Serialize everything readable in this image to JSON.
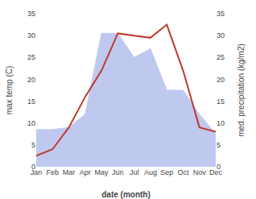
{
  "chart_data": {
    "type": "line",
    "categories": [
      "Jan",
      "Feb",
      "Mar",
      "Apr",
      "May",
      "Jun",
      "Jul",
      "Aug",
      "Sep",
      "Oct",
      "Nov",
      "Dec"
    ],
    "series": [
      {
        "type": "area",
        "color": "#bfc9f0",
        "values": [
          8.5,
          8.5,
          9.0,
          12.0,
          30.5,
          30.5,
          25.0,
          27.0,
          17.5,
          17.5,
          12.0,
          7.5
        ]
      },
      {
        "type": "line",
        "color": "#c0392b",
        "values": [
          2.5,
          4.0,
          9.0,
          16.0,
          22.0,
          30.5,
          30.0,
          29.5,
          32.5,
          22.0,
          9.0,
          8.0
        ]
      }
    ],
    "xlabel": "date (month)",
    "ylabel": "max temp (C)",
    "y2label": "med. precipitation (kg/m2)",
    "ylim": [
      0,
      35
    ],
    "yticks": [
      0,
      5,
      10,
      15,
      20,
      25,
      30,
      35
    ],
    "y2lim": [
      0,
      35
    ],
    "y2ticks": [
      0,
      5,
      10,
      15,
      20,
      25,
      30,
      35
    ],
    "grid": false
  }
}
